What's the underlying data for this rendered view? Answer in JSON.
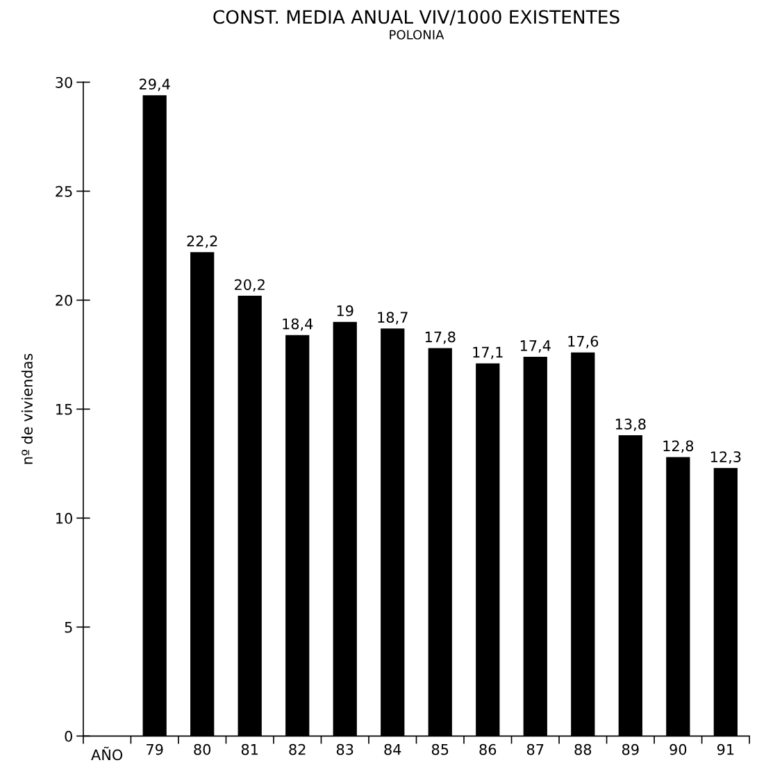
{
  "chart_data": {
    "type": "bar",
    "title": "CONST. MEDIA ANUAL VIV/1000 EXISTENTES",
    "subtitle": "POLONIA",
    "xlabel": "AÑO",
    "ylabel": "nº de viviendas",
    "categories": [
      "79",
      "80",
      "81",
      "82",
      "83",
      "84",
      "85",
      "86",
      "87",
      "88",
      "89",
      "90",
      "91"
    ],
    "values": [
      29.4,
      22.2,
      20.2,
      18.4,
      19,
      18.7,
      17.8,
      17.1,
      17.4,
      17.6,
      13.8,
      12.8,
      12.3
    ],
    "value_labels": [
      "29,4",
      "22,2",
      "20,2",
      "18,4",
      "19",
      "18,7",
      "17,8",
      "17,1",
      "17,4",
      "17,6",
      "13,8",
      "12,8",
      "12,3"
    ],
    "color": "#000000",
    "ylim": [
      0,
      30
    ],
    "yticks": [
      0,
      5,
      10,
      15,
      20,
      25,
      30
    ],
    "grid": false,
    "legend": false
  }
}
